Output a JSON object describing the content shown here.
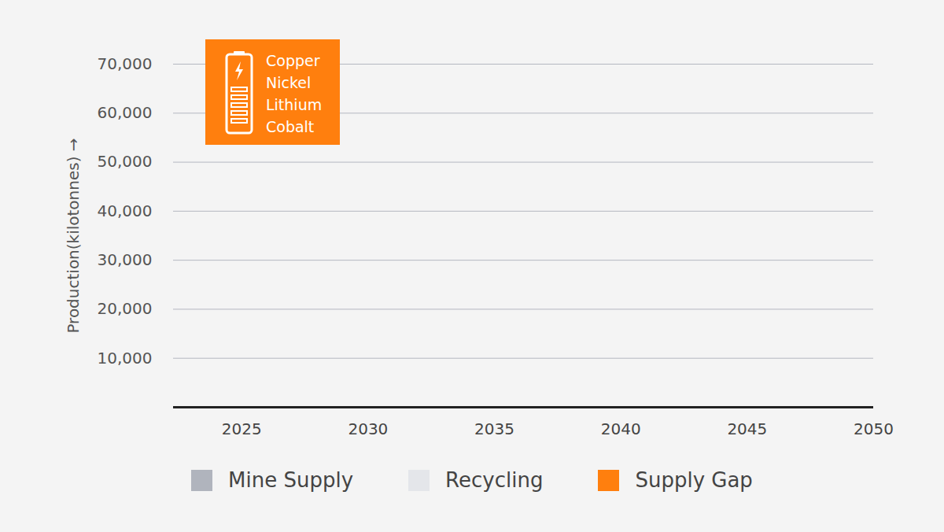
{
  "chart_data": {
    "type": "bar",
    "stacked": true,
    "y_label": "Production(kilotonnes)",
    "annotation": [
      "Copper",
      "Nickel",
      "Lithium",
      "Cobalt"
    ],
    "x": [
      2025,
      2030,
      2035,
      2040,
      2045,
      2050
    ],
    "xlim": [
      2022.3,
      2050
    ],
    "xticks": [
      2025,
      2030,
      2035,
      2040,
      2045,
      2050
    ],
    "ylim": [
      0,
      70000
    ],
    "yticks": [
      {
        "value": 10000,
        "label": "10,000"
      },
      {
        "value": 20000,
        "label": "20,000"
      },
      {
        "value": 30000,
        "label": "30,000"
      },
      {
        "value": 40000,
        "label": "40,000"
      },
      {
        "value": 50000,
        "label": "50,000"
      },
      {
        "value": 60000,
        "label": "60,000"
      },
      {
        "value": 70000,
        "label": "70,000"
      }
    ],
    "grid": true,
    "legend": "bottom",
    "series": [
      {
        "name": "Mine Supply",
        "color": "#b0b4bd",
        "values": [
          null,
          null,
          null,
          null,
          null,
          null
        ]
      },
      {
        "name": "Recycling",
        "color": "#e4e6ea",
        "values": [
          null,
          null,
          null,
          null,
          null,
          null
        ]
      },
      {
        "name": "Supply Gap",
        "color": "#ff7f0e",
        "values": [
          null,
          null,
          null,
          null,
          null,
          null
        ]
      }
    ]
  }
}
